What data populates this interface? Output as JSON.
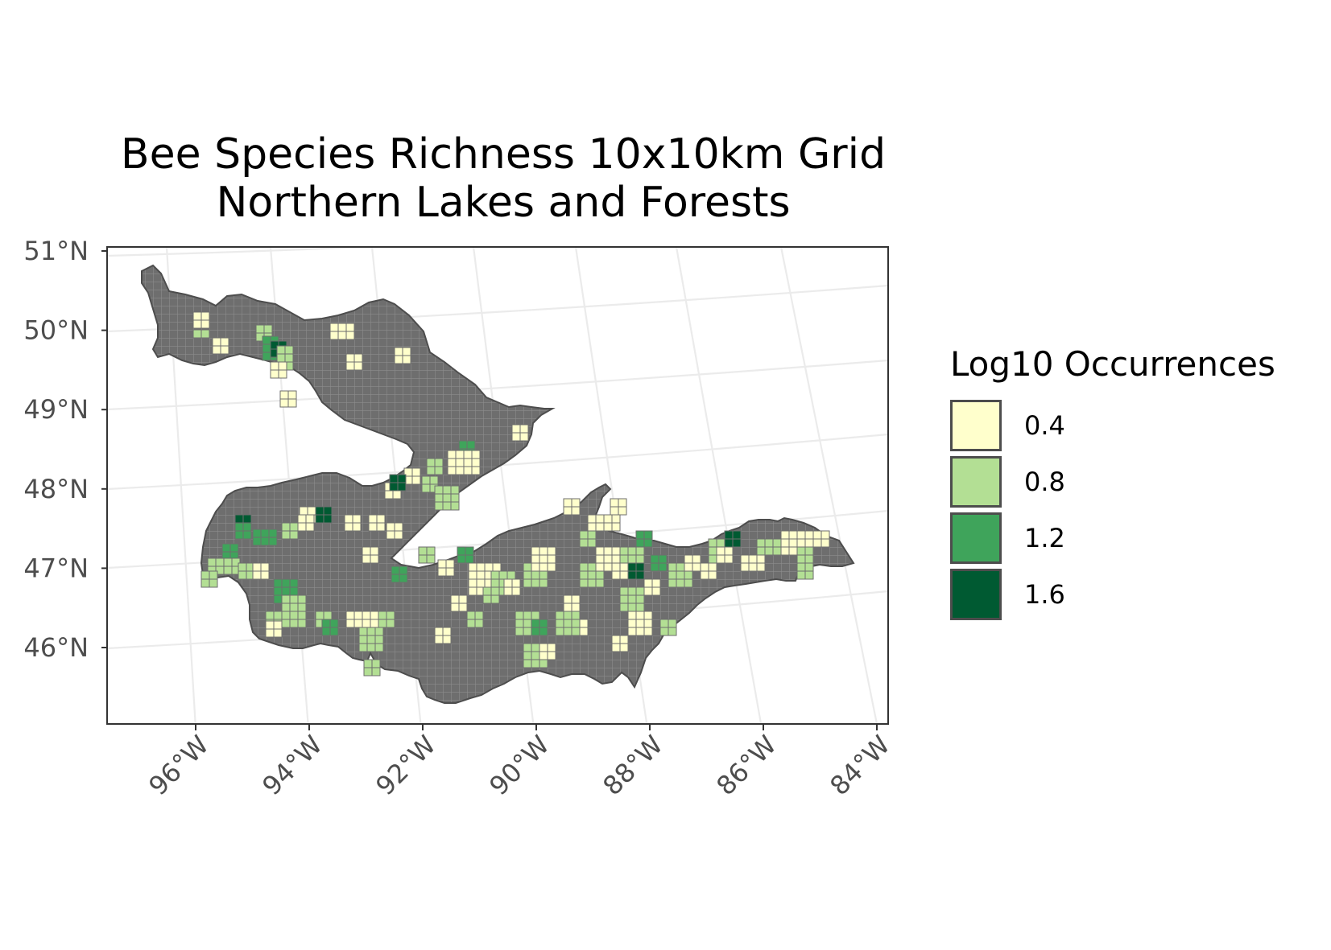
{
  "map": {
    "title_line_1": "Bee Species Richness 10x10km Grid",
    "title_line_2": "Northern Lakes and Forests",
    "latitude_labels": [
      "51°N",
      "50°N",
      "49°N",
      "48°N",
      "47°N",
      "46°N"
    ],
    "longitude_labels": [
      "96°W",
      "94°W",
      "92°W",
      "90°W",
      "88°W",
      "86°W",
      "84°W"
    ],
    "latitude_values": [
      51,
      50,
      49,
      48,
      47,
      46
    ],
    "longitude_values": [
      -96,
      -94,
      -92,
      -90,
      -88,
      -86,
      -84
    ],
    "region_fill": "#6e6e6e",
    "grid_line_color": "#8c8c8c",
    "outline_color": "#4d4d4d",
    "graticule_color": "#ebebeb"
  },
  "legend": {
    "title": "Log10 Occurrences",
    "items": [
      {
        "label": "0.4",
        "color": "#ffffcc"
      },
      {
        "label": "0.8",
        "color": "#b3df94"
      },
      {
        "label": "1.2",
        "color": "#3fa45b"
      },
      {
        "label": "1.6",
        "color": "#005a32"
      }
    ]
  }
}
